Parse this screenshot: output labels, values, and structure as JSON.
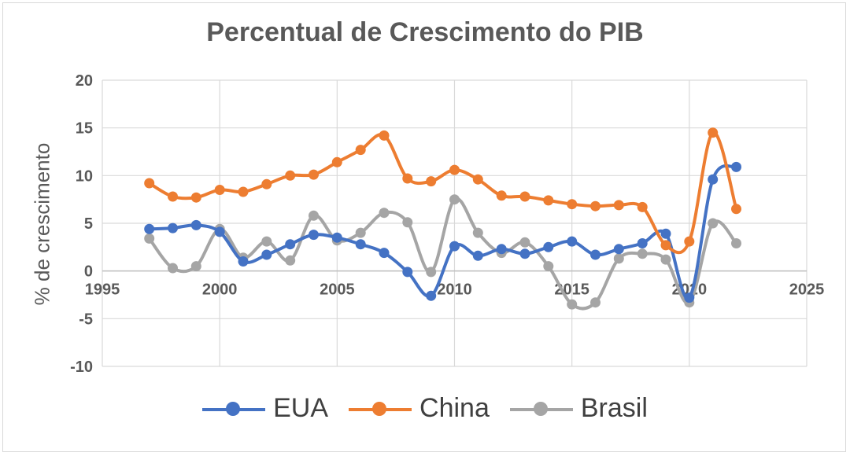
{
  "chart_data": {
    "type": "line",
    "title": "Percentual de Crescimento do PIB",
    "xlabel": "",
    "ylabel": "% de crescimento",
    "xlim": [
      1995,
      2025
    ],
    "ylim": [
      -10,
      20
    ],
    "x_ticks": [
      "1995",
      "2000",
      "2005",
      "2010",
      "2015",
      "2020",
      "2025"
    ],
    "y_ticks": [
      "-10",
      "-5",
      "0",
      "5",
      "10",
      "15",
      "20"
    ],
    "grid": true,
    "smooth": true,
    "legend_position": "bottom",
    "x": [
      1997,
      1998,
      1999,
      2000,
      2001,
      2002,
      2003,
      2004,
      2005,
      2006,
      2007,
      2008,
      2009,
      2010,
      2011,
      2012,
      2013,
      2014,
      2015,
      2016,
      2017,
      2018,
      2019,
      2020,
      2021,
      2022
    ],
    "series": [
      {
        "name": "EUA",
        "color": "#4472c4",
        "values": [
          4.4,
          4.5,
          4.8,
          4.1,
          1.0,
          1.7,
          2.8,
          3.8,
          3.5,
          2.8,
          1.9,
          -0.1,
          -2.6,
          2.6,
          1.6,
          2.3,
          1.8,
          2.5,
          3.1,
          1.7,
          2.3,
          2.9,
          3.9,
          -2.8,
          9.6,
          10.9
        ]
      },
      {
        "name": "China",
        "color": "#ed7d31",
        "values": [
          9.2,
          7.8,
          7.7,
          8.5,
          8.3,
          9.1,
          10.0,
          10.1,
          11.4,
          12.7,
          14.2,
          9.7,
          9.4,
          10.6,
          9.6,
          7.9,
          7.8,
          7.4,
          7.0,
          6.8,
          6.9,
          6.7,
          2.7,
          3.1,
          14.5,
          6.5
        ]
      },
      {
        "name": "Brasil",
        "color": "#a5a5a5",
        "values": [
          3.4,
          0.3,
          0.5,
          4.4,
          1.4,
          3.1,
          1.1,
          5.8,
          3.2,
          4.0,
          6.1,
          5.1,
          -0.1,
          7.5,
          4.0,
          1.9,
          3.0,
          0.5,
          -3.5,
          -3.3,
          1.3,
          1.8,
          1.2,
          -3.3,
          5.0,
          2.9
        ]
      }
    ]
  }
}
